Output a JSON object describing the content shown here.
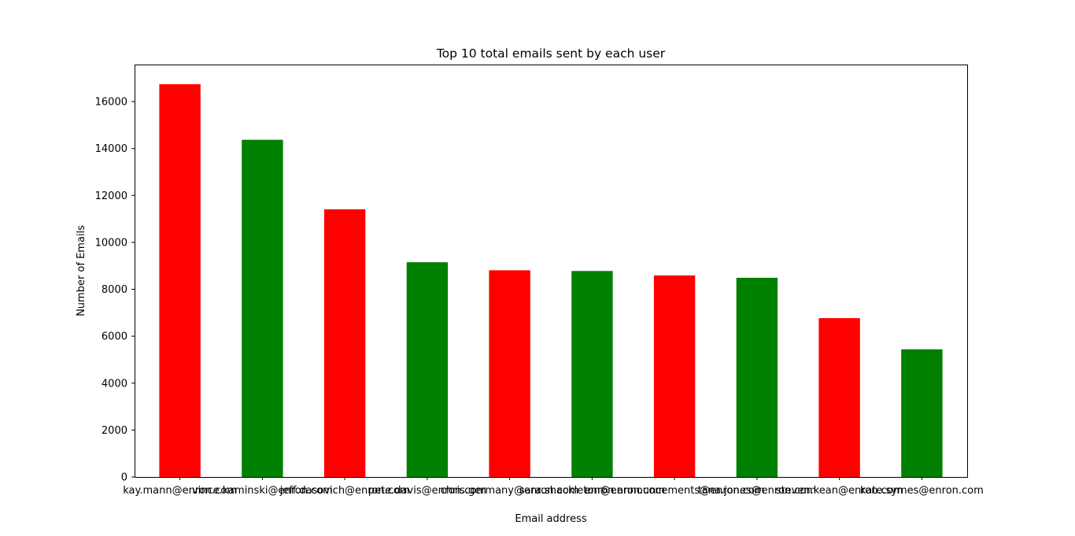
{
  "chart_data": {
    "type": "bar",
    "title": "Top 10 total emails sent by each user",
    "xlabel": "Email address",
    "ylabel": "Number of Emails",
    "categories": [
      "kay.mann@enron.com",
      "vince.kaminski@enron.com",
      "jeff.dasovich@enron.com",
      "pete.davis@enron.com",
      "chris.germany@enron.com",
      "sara.shackleton@enron.com",
      "enron.announcements@enron.com",
      "tana.jones@enron.com",
      "steven.kean@enron.com",
      "kate.symes@enron.com"
    ],
    "values": [
      16740,
      14370,
      11410,
      9150,
      8810,
      8780,
      8590,
      8490,
      6770,
      5440
    ],
    "bar_colors": [
      "#ff0000",
      "#008000",
      "#ff0000",
      "#008000",
      "#ff0000",
      "#008000",
      "#ff0000",
      "#008000",
      "#ff0000",
      "#008000"
    ],
    "ylim": [
      0,
      17578
    ],
    "yticks": [
      0,
      2000,
      4000,
      6000,
      8000,
      10000,
      12000,
      14000,
      16000
    ],
    "grid": false,
    "legend": "none"
  }
}
